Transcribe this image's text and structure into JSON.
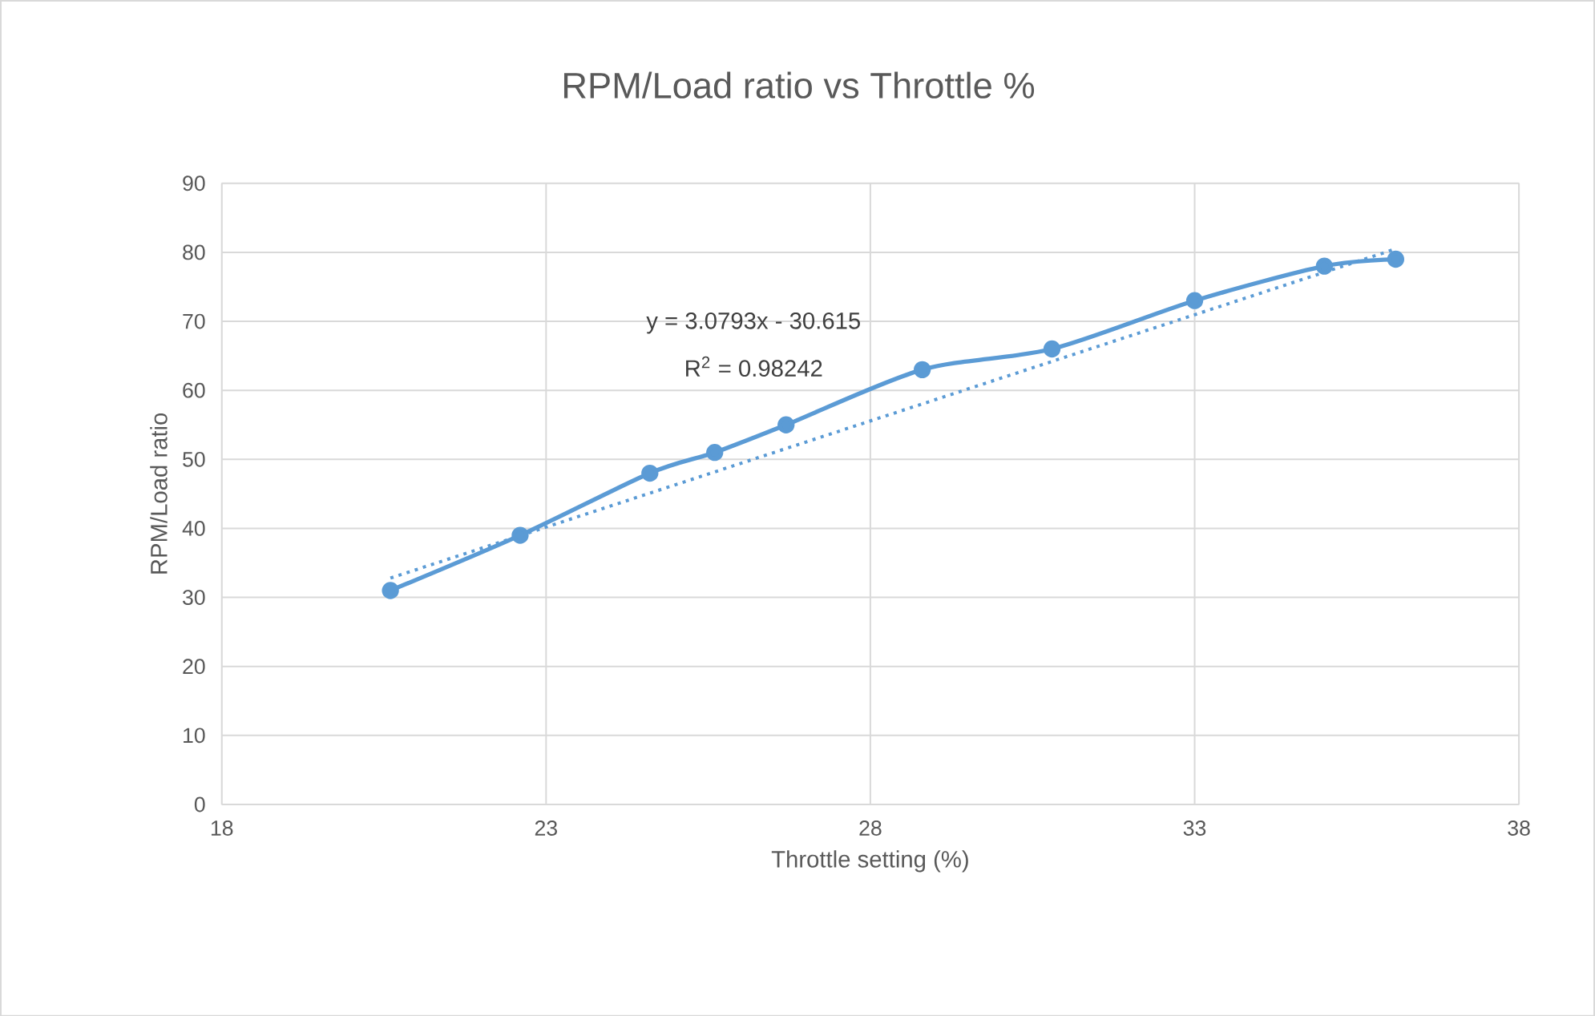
{
  "chart_data": {
    "type": "line",
    "title": "RPM/Load ratio vs Throttle %",
    "xlabel": "Throttle setting (%)",
    "ylabel": "RPM/Load ratio",
    "xlim": [
      18,
      38
    ],
    "xticks": [
      18,
      23,
      28,
      33,
      38
    ],
    "ylim": [
      0,
      90
    ],
    "yticks": [
      0,
      10,
      20,
      30,
      40,
      50,
      60,
      70,
      80,
      90
    ],
    "grid": true,
    "series": [
      {
        "color": "#5b9bd5",
        "marker": "circle",
        "line_style": "solid",
        "x": [
          20.6,
          22.6,
          24.6,
          25.6,
          26.7,
          28.8,
          30.8,
          33.0,
          35.0,
          36.1
        ],
        "values": [
          31,
          39,
          48,
          51,
          55,
          63,
          66,
          73,
          78,
          79
        ]
      },
      {
        "color": "#5b9bd5",
        "marker": "none",
        "line_style": "dotted",
        "x": [
          20.6,
          36.1
        ],
        "values": [
          32.8,
          80.5
        ]
      }
    ],
    "annotations": [
      "y = 3.0793x - 30.615",
      "R$^{2}$ = 0.98242"
    ]
  }
}
